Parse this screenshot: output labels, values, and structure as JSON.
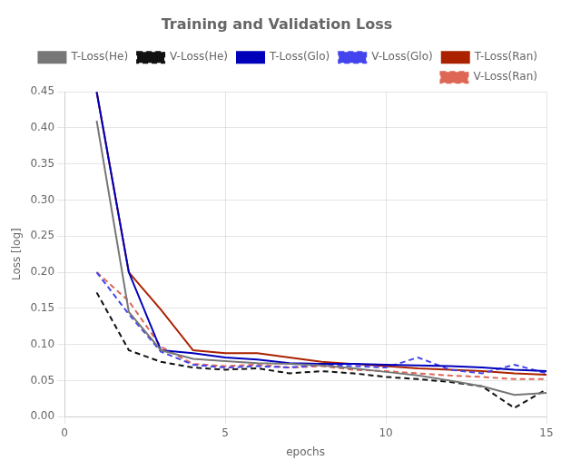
{
  "chart_data": {
    "type": "line",
    "title": "Training and Validation Loss",
    "xlabel": "epochs",
    "ylabel": "Loss [log]",
    "x": [
      1,
      2,
      3,
      4,
      5,
      6,
      7,
      8,
      9,
      10,
      11,
      12,
      13,
      14,
      15
    ],
    "series": [
      {
        "name": "T-Loss(He)",
        "color": "#777777",
        "line_style": "solid",
        "values": [
          0.41,
          0.145,
          0.092,
          0.08,
          0.077,
          0.074,
          0.073,
          0.071,
          0.067,
          0.062,
          0.057,
          0.05,
          0.042,
          0.03,
          0.033
        ]
      },
      {
        "name": "V-Loss(He)",
        "color": "#111111",
        "line_style": "dashed",
        "values": [
          0.172,
          0.092,
          0.076,
          0.068,
          0.065,
          0.067,
          0.06,
          0.063,
          0.06,
          0.055,
          0.052,
          0.048,
          0.042,
          0.012,
          0.038
        ]
      },
      {
        "name": "T-Loss(Glo)",
        "color": "#0000BB",
        "line_style": "solid",
        "values": [
          0.45,
          0.2,
          0.092,
          0.088,
          0.082,
          0.079,
          0.074,
          0.073,
          0.073,
          0.072,
          0.071,
          0.07,
          0.068,
          0.065,
          0.063
        ]
      },
      {
        "name": "V-Loss(Glo)",
        "color": "#4444EE",
        "line_style": "dashed",
        "values": [
          0.2,
          0.142,
          0.09,
          0.072,
          0.068,
          0.07,
          0.068,
          0.072,
          0.07,
          0.068,
          0.082,
          0.065,
          0.06,
          0.072,
          0.06
        ]
      },
      {
        "name": "T-Loss(Ran)",
        "color": "#AA2200",
        "line_style": "solid",
        "values": [
          0.45,
          0.2,
          0.148,
          0.092,
          0.088,
          0.088,
          0.082,
          0.076,
          0.073,
          0.07,
          0.067,
          0.065,
          0.063,
          0.06,
          0.058
        ]
      },
      {
        "name": "V-Loss(Ran)",
        "color": "#DD6655",
        "line_style": "dashed",
        "values": [
          0.2,
          0.16,
          0.097,
          0.073,
          0.07,
          0.072,
          0.068,
          0.07,
          0.065,
          0.063,
          0.06,
          0.057,
          0.055,
          0.052,
          0.052
        ]
      }
    ],
    "xlim": [
      0,
      15
    ],
    "xticks": [
      0,
      5,
      10,
      15
    ],
    "ylim": [
      0,
      0.45
    ],
    "yticks": [
      {
        "value": 0.0,
        "label": "0.00"
      },
      0.05,
      {
        "value": 0.1,
        "label": "0.10"
      },
      0.15,
      {
        "value": 0.2,
        "label": "0.20"
      },
      0.25,
      {
        "value": 0.3,
        "label": "0.30"
      },
      0.35,
      {
        "value": 0.4,
        "label": "0.40"
      },
      0.45
    ],
    "grid": true,
    "legend": "upper right"
  }
}
